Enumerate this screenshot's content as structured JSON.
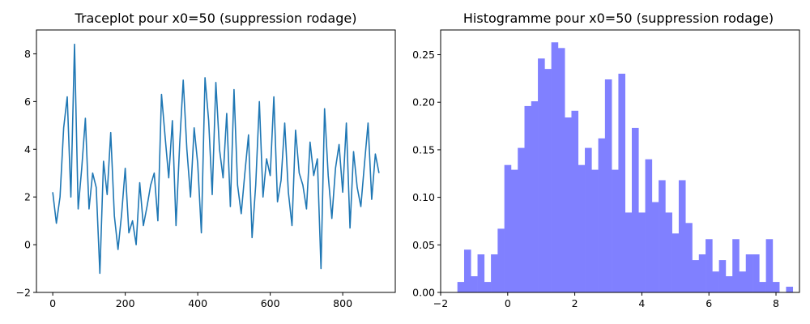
{
  "chart_data": [
    {
      "type": "line",
      "title": "Traceplot pour x0=50 (suppression rodage)",
      "xlabel": "",
      "ylabel": "",
      "xlim": [
        -45,
        945
      ],
      "ylim": [
        -2.0,
        9.0
      ],
      "xticks": [
        0,
        200,
        400,
        600,
        800
      ],
      "yticks": [
        -2,
        0,
        2,
        4,
        6,
        8
      ],
      "grid": false,
      "series": [
        {
          "color": "#1f77b4",
          "x": [
            0,
            10,
            20,
            30,
            40,
            50,
            60,
            70,
            80,
            90,
            100,
            110,
            120,
            130,
            140,
            150,
            160,
            170,
            180,
            190,
            200,
            210,
            220,
            230,
            240,
            250,
            260,
            270,
            280,
            290,
            300,
            310,
            320,
            330,
            340,
            350,
            360,
            370,
            380,
            390,
            400,
            410,
            420,
            430,
            440,
            450,
            460,
            470,
            480,
            490,
            500,
            510,
            520,
            530,
            540,
            550,
            560,
            570,
            580,
            590,
            600,
            610,
            620,
            630,
            640,
            650,
            660,
            670,
            680,
            690,
            700,
            710,
            720,
            730,
            740,
            750,
            760,
            770,
            780,
            790,
            800,
            810,
            820,
            830,
            840,
            850,
            860,
            870,
            880,
            890,
            900
          ],
          "values": [
            2.2,
            0.9,
            2.0,
            4.9,
            6.2,
            2.0,
            8.4,
            1.5,
            3.2,
            5.3,
            1.5,
            3.0,
            2.4,
            -1.2,
            3.5,
            2.1,
            4.7,
            1.2,
            -0.2,
            1.3,
            3.2,
            0.5,
            1.0,
            0.0,
            2.6,
            0.8,
            1.6,
            2.5,
            3.0,
            1.0,
            6.3,
            4.5,
            2.8,
            5.2,
            0.8,
            4.2,
            6.9,
            4.0,
            2.0,
            4.9,
            3.4,
            0.5,
            7.0,
            5.2,
            2.1,
            6.8,
            4.0,
            2.8,
            5.5,
            1.6,
            6.5,
            2.5,
            1.3,
            3.0,
            4.6,
            0.3,
            2.5,
            6.0,
            2.0,
            3.6,
            2.9,
            6.2,
            1.8,
            2.7,
            5.1,
            2.2,
            0.8,
            4.8,
            3.0,
            2.5,
            1.5,
            4.3,
            2.9,
            3.6,
            -1.0,
            5.7,
            2.9,
            1.1,
            3.2,
            4.2,
            2.2,
            5.1,
            0.7,
            3.9,
            2.4,
            1.6,
            3.4,
            5.1,
            1.9,
            3.8,
            3.0
          ]
        }
      ]
    },
    {
      "type": "bar",
      "title": "Histogramme pour x0=50 (suppression rodage)",
      "xlabel": "",
      "ylabel": "",
      "xlim": [
        -2.0,
        8.7
      ],
      "ylim": [
        0,
        0.276
      ],
      "xticks": [
        -2,
        0,
        2,
        4,
        6,
        8
      ],
      "yticks": [
        0.0,
        0.05,
        0.1,
        0.15,
        0.2,
        0.25
      ],
      "grid": false,
      "bin_start": -1.5,
      "bin_width": 0.2,
      "color": "#8080ff",
      "values": [
        0.011,
        0.045,
        0.017,
        0.04,
        0.011,
        0.04,
        0.067,
        0.134,
        0.129,
        0.152,
        0.196,
        0.201,
        0.246,
        0.235,
        0.263,
        0.257,
        0.184,
        0.191,
        0.134,
        0.152,
        0.129,
        0.162,
        0.224,
        0.129,
        0.23,
        0.084,
        0.173,
        0.084,
        0.14,
        0.095,
        0.118,
        0.084,
        0.062,
        0.118,
        0.073,
        0.034,
        0.04,
        0.056,
        0.022,
        0.034,
        0.017,
        0.056,
        0.022,
        0.04,
        0.04,
        0.011,
        0.056,
        0.011,
        0.0,
        0.006
      ]
    }
  ]
}
